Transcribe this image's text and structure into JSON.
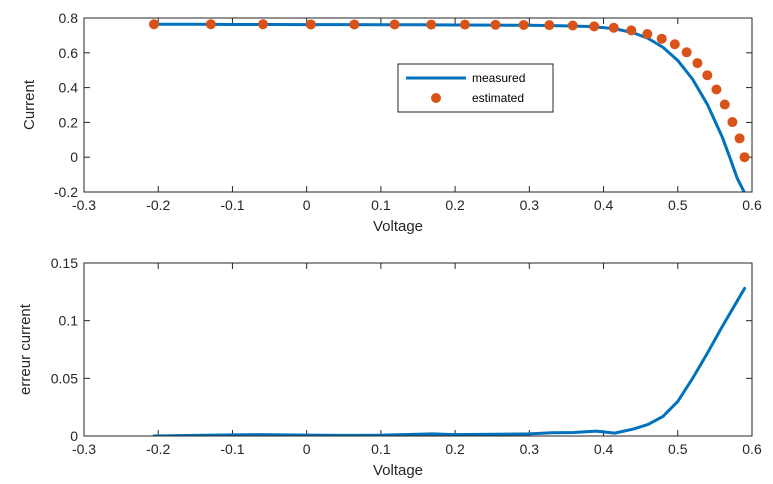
{
  "chart_data": [
    {
      "type": "line",
      "xlabel": "Voltage",
      "ylabel": "Current",
      "xlim": [
        -0.3,
        0.6
      ],
      "ylim": [
        -0.2,
        0.8
      ],
      "xticks": [
        "-0.3",
        "-0.2",
        "-0.1",
        "0",
        "0.1",
        "0.2",
        "0.3",
        "0.4",
        "0.5",
        "0.6"
      ],
      "yticks": [
        "-0.2",
        "0",
        "0.2",
        "0.4",
        "0.6",
        "0.8"
      ],
      "legend_position": "center-right",
      "grid": false,
      "series": [
        {
          "name": "measured",
          "style": "line",
          "color": "#0072BD",
          "x": [
            -0.2057,
            -0.15,
            -0.1,
            -0.05,
            0.0,
            0.05,
            0.1,
            0.15,
            0.2,
            0.25,
            0.3,
            0.35,
            0.38,
            0.4,
            0.42,
            0.44,
            0.46,
            0.48,
            0.5,
            0.52,
            0.54,
            0.56,
            0.57,
            0.58,
            0.59
          ],
          "y": [
            0.764,
            0.764,
            0.763,
            0.763,
            0.762,
            0.762,
            0.761,
            0.761,
            0.76,
            0.759,
            0.758,
            0.755,
            0.751,
            0.745,
            0.734,
            0.715,
            0.683,
            0.632,
            0.556,
            0.448,
            0.302,
            0.115,
            0.0,
            -0.12,
            -0.205
          ]
        },
        {
          "name": "estimated",
          "style": "markers",
          "color": "#D95319",
          "x": [
            -0.2057,
            -0.1291,
            -0.0588,
            0.0057,
            0.0642,
            0.1185,
            0.1678,
            0.2132,
            0.2545,
            0.2924,
            0.3269,
            0.3585,
            0.3873,
            0.4137,
            0.4373,
            0.459,
            0.4784,
            0.496,
            0.5119,
            0.5265,
            0.5398,
            0.5521,
            0.5633,
            0.5736,
            0.5833,
            0.59
          ],
          "y": [
            0.764,
            0.764,
            0.764,
            0.763,
            0.763,
            0.763,
            0.762,
            0.762,
            0.761,
            0.76,
            0.759,
            0.757,
            0.752,
            0.744,
            0.729,
            0.708,
            0.681,
            0.649,
            0.603,
            0.541,
            0.471,
            0.389,
            0.303,
            0.202,
            0.108,
            0.0
          ]
        }
      ]
    },
    {
      "type": "line",
      "xlabel": "Voltage",
      "ylabel": "erreur current",
      "xlim": [
        -0.3,
        0.6
      ],
      "ylim": [
        0,
        0.15
      ],
      "xticks": [
        "-0.3",
        "-0.2",
        "-0.1",
        "0",
        "0.1",
        "0.2",
        "0.3",
        "0.4",
        "0.5",
        "0.6"
      ],
      "yticks": [
        "0",
        "0.05",
        "0.1",
        "0.15"
      ],
      "grid": false,
      "series": [
        {
          "style": "line",
          "color": "#0072BD",
          "x": [
            -0.2057,
            -0.15,
            -0.1,
            -0.06,
            0.0,
            0.05,
            0.1,
            0.13,
            0.17,
            0.2,
            0.25,
            0.3,
            0.33,
            0.36,
            0.39,
            0.415,
            0.44,
            0.46,
            0.48,
            0.5,
            0.52,
            0.54,
            0.56,
            0.58,
            0.59
          ],
          "y": [
            0.0,
            0.0005,
            0.001,
            0.0012,
            0.0008,
            0.0005,
            0.0007,
            0.0012,
            0.0018,
            0.0012,
            0.0015,
            0.0018,
            0.0028,
            0.003,
            0.0042,
            0.0025,
            0.006,
            0.01,
            0.017,
            0.03,
            0.05,
            0.072,
            0.095,
            0.117,
            0.128
          ]
        }
      ]
    }
  ]
}
